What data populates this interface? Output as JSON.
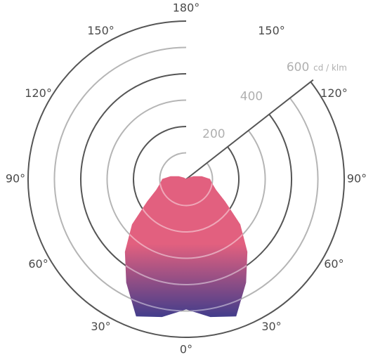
{
  "chart_data": {
    "type": "polar",
    "angles": [
      0,
      10,
      20,
      30,
      40,
      50,
      60,
      70,
      80,
      90,
      100,
      110,
      120,
      130,
      140,
      150,
      160,
      170,
      180
    ],
    "values": [
      493,
      530,
      553,
      453,
      360,
      267,
      170,
      120,
      100,
      90,
      60,
      30,
      10,
      0,
      0,
      0,
      0,
      0,
      0
    ],
    "rlim": [
      0,
      600
    ],
    "rticks": [
      200,
      400,
      600
    ],
    "rminor": [
      100,
      300,
      500
    ],
    "runit": "cd / klm",
    "angle_ticks": [
      {
        "value": 0,
        "label": "0°"
      },
      {
        "value": 30,
        "label": "30°"
      },
      {
        "value": 60,
        "label": "60°"
      },
      {
        "value": 90,
        "label": "90°"
      },
      {
        "value": 120,
        "label": "120°"
      },
      {
        "value": 150,
        "label": "150°"
      },
      {
        "value": 180,
        "label": "180°"
      }
    ],
    "color_top": "#e2607f",
    "color_bottom": "#353a8c",
    "grid_color": "#555555",
    "minor_grid_color": "#b5b5b5"
  }
}
